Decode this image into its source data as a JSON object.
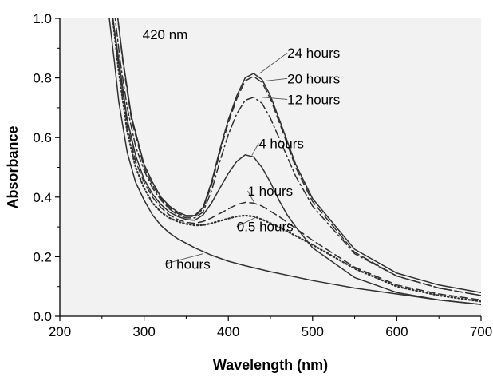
{
  "chart_data": {
    "type": "line",
    "title": "",
    "xlabel": "Wavelength (nm)",
    "ylabel": "Absorbance",
    "xlim": [
      200,
      700
    ],
    "ylim": [
      0.0,
      1.0
    ],
    "x_ticks": [
      "200",
      "300",
      "400",
      "500",
      "600",
      "700"
    ],
    "y_ticks": [
      "0.0",
      "0.2",
      "0.4",
      "0.6",
      "0.8",
      "1.0"
    ],
    "grid": false,
    "plot_background": "#f2f2f2",
    "annotations": [
      "420 nm"
    ],
    "series": [
      {
        "name": "0 hours",
        "style": "solid",
        "color": "#303030",
        "points": [
          [
            258,
            1.02
          ],
          [
            265,
            0.85
          ],
          [
            270,
            0.72
          ],
          [
            280,
            0.55
          ],
          [
            290,
            0.45
          ],
          [
            300,
            0.39
          ],
          [
            310,
            0.34
          ],
          [
            320,
            0.305
          ],
          [
            330,
            0.28
          ],
          [
            340,
            0.26
          ],
          [
            350,
            0.245
          ],
          [
            360,
            0.23
          ],
          [
            380,
            0.205
          ],
          [
            400,
            0.185
          ],
          [
            420,
            0.17
          ],
          [
            450,
            0.15
          ],
          [
            500,
            0.12
          ],
          [
            550,
            0.095
          ],
          [
            600,
            0.075
          ],
          [
            650,
            0.055
          ],
          [
            700,
            0.04
          ]
        ]
      },
      {
        "name": "0.5 hours",
        "style": "dotted",
        "color": "#303030",
        "points": [
          [
            262,
            1.02
          ],
          [
            270,
            0.82
          ],
          [
            280,
            0.62
          ],
          [
            290,
            0.5
          ],
          [
            300,
            0.43
          ],
          [
            310,
            0.38
          ],
          [
            320,
            0.35
          ],
          [
            330,
            0.33
          ],
          [
            340,
            0.318
          ],
          [
            350,
            0.31
          ],
          [
            360,
            0.305
          ],
          [
            370,
            0.306
          ],
          [
            380,
            0.312
          ],
          [
            390,
            0.32
          ],
          [
            400,
            0.328
          ],
          [
            410,
            0.335
          ],
          [
            420,
            0.338
          ],
          [
            430,
            0.335
          ],
          [
            440,
            0.325
          ],
          [
            460,
            0.3
          ],
          [
            480,
            0.27
          ],
          [
            500,
            0.24
          ],
          [
            550,
            0.16
          ],
          [
            600,
            0.1
          ],
          [
            650,
            0.07
          ],
          [
            700,
            0.05
          ]
        ]
      },
      {
        "name": "1 hours",
        "style": "dashed",
        "color": "#303030",
        "points": [
          [
            262,
            1.02
          ],
          [
            270,
            0.84
          ],
          [
            280,
            0.64
          ],
          [
            290,
            0.52
          ],
          [
            300,
            0.45
          ],
          [
            310,
            0.4
          ],
          [
            320,
            0.365
          ],
          [
            330,
            0.34
          ],
          [
            340,
            0.325
          ],
          [
            350,
            0.315
          ],
          [
            360,
            0.312
          ],
          [
            370,
            0.318
          ],
          [
            380,
            0.33
          ],
          [
            390,
            0.345
          ],
          [
            400,
            0.36
          ],
          [
            410,
            0.375
          ],
          [
            420,
            0.382
          ],
          [
            430,
            0.38
          ],
          [
            440,
            0.37
          ],
          [
            460,
            0.335
          ],
          [
            480,
            0.295
          ],
          [
            500,
            0.255
          ],
          [
            550,
            0.165
          ],
          [
            600,
            0.105
          ],
          [
            650,
            0.075
          ],
          [
            700,
            0.055
          ]
        ]
      },
      {
        "name": "4 hours",
        "style": "solid",
        "color": "#303030",
        "points": [
          [
            262,
            1.02
          ],
          [
            270,
            0.86
          ],
          [
            280,
            0.66
          ],
          [
            290,
            0.54
          ],
          [
            300,
            0.46
          ],
          [
            310,
            0.41
          ],
          [
            320,
            0.375
          ],
          [
            330,
            0.35
          ],
          [
            340,
            0.335
          ],
          [
            350,
            0.325
          ],
          [
            360,
            0.322
          ],
          [
            370,
            0.34
          ],
          [
            380,
            0.38
          ],
          [
            390,
            0.43
          ],
          [
            400,
            0.48
          ],
          [
            410,
            0.52
          ],
          [
            420,
            0.542
          ],
          [
            430,
            0.535
          ],
          [
            440,
            0.5
          ],
          [
            450,
            0.45
          ],
          [
            460,
            0.39
          ],
          [
            470,
            0.34
          ],
          [
            480,
            0.3
          ],
          [
            500,
            0.23
          ],
          [
            550,
            0.13
          ],
          [
            600,
            0.08
          ],
          [
            650,
            0.055
          ],
          [
            700,
            0.04
          ]
        ]
      },
      {
        "name": "12 hours",
        "style": "dashdot",
        "color": "#303030",
        "points": [
          [
            265,
            1.02
          ],
          [
            272,
            0.85
          ],
          [
            280,
            0.7
          ],
          [
            290,
            0.57
          ],
          [
            300,
            0.49
          ],
          [
            310,
            0.43
          ],
          [
            320,
            0.39
          ],
          [
            330,
            0.36
          ],
          [
            340,
            0.34
          ],
          [
            350,
            0.33
          ],
          [
            360,
            0.33
          ],
          [
            370,
            0.35
          ],
          [
            380,
            0.42
          ],
          [
            390,
            0.52
          ],
          [
            400,
            0.61
          ],
          [
            410,
            0.68
          ],
          [
            420,
            0.725
          ],
          [
            430,
            0.735
          ],
          [
            440,
            0.715
          ],
          [
            450,
            0.665
          ],
          [
            460,
            0.6
          ],
          [
            480,
            0.47
          ],
          [
            500,
            0.37
          ],
          [
            550,
            0.21
          ],
          [
            600,
            0.135
          ],
          [
            650,
            0.095
          ],
          [
            700,
            0.07
          ]
        ]
      },
      {
        "name": "20 hours",
        "style": "dashed",
        "color": "#303030",
        "points": [
          [
            268,
            1.02
          ],
          [
            275,
            0.85
          ],
          [
            285,
            0.66
          ],
          [
            300,
            0.5
          ],
          [
            310,
            0.44
          ],
          [
            320,
            0.395
          ],
          [
            330,
            0.365
          ],
          [
            340,
            0.345
          ],
          [
            350,
            0.335
          ],
          [
            360,
            0.335
          ],
          [
            370,
            0.36
          ],
          [
            380,
            0.44
          ],
          [
            390,
            0.55
          ],
          [
            400,
            0.65
          ],
          [
            410,
            0.73
          ],
          [
            420,
            0.79
          ],
          [
            430,
            0.805
          ],
          [
            440,
            0.785
          ],
          [
            450,
            0.73
          ],
          [
            460,
            0.655
          ],
          [
            480,
            0.5
          ],
          [
            500,
            0.385
          ],
          [
            550,
            0.215
          ],
          [
            600,
            0.135
          ],
          [
            650,
            0.095
          ],
          [
            700,
            0.07
          ]
        ]
      },
      {
        "name": "24 hours",
        "style": "solid",
        "color": "#303030",
        "points": [
          [
            268,
            1.02
          ],
          [
            275,
            0.86
          ],
          [
            285,
            0.67
          ],
          [
            300,
            0.51
          ],
          [
            310,
            0.45
          ],
          [
            320,
            0.4
          ],
          [
            330,
            0.37
          ],
          [
            340,
            0.35
          ],
          [
            350,
            0.338
          ],
          [
            360,
            0.338
          ],
          [
            370,
            0.365
          ],
          [
            380,
            0.45
          ],
          [
            390,
            0.56
          ],
          [
            400,
            0.66
          ],
          [
            410,
            0.74
          ],
          [
            420,
            0.8
          ],
          [
            430,
            0.815
          ],
          [
            440,
            0.795
          ],
          [
            450,
            0.74
          ],
          [
            460,
            0.665
          ],
          [
            480,
            0.51
          ],
          [
            500,
            0.395
          ],
          [
            550,
            0.225
          ],
          [
            600,
            0.145
          ],
          [
            650,
            0.105
          ],
          [
            700,
            0.08
          ]
        ]
      }
    ],
    "labels": [
      {
        "text": "24 hours",
        "x": 470,
        "y": 0.868,
        "anchor_x": 437,
        "anchor_y": 0.815
      },
      {
        "text": "20 hours",
        "x": 470,
        "y": 0.782,
        "anchor_x": 445,
        "anchor_y": 0.79
      },
      {
        "text": "12 hours",
        "x": 470,
        "y": 0.712,
        "anchor_x": 440,
        "anchor_y": 0.735
      },
      {
        "text": "4 hours",
        "x": 436,
        "y": 0.565,
        "anchor_x": 428,
        "anchor_y": 0.54
      },
      {
        "text": "1 hours",
        "x": 423,
        "y": 0.405,
        "anchor_x": 430,
        "anchor_y": 0.385
      },
      {
        "text": "0.5 hours",
        "x": 410,
        "y": 0.285,
        "anchor_x": 435,
        "anchor_y": 0.335
      },
      {
        "text": "0 hours",
        "x": 325,
        "y": 0.16,
        "anchor_x": 370,
        "anchor_y": 0.21
      }
    ]
  }
}
